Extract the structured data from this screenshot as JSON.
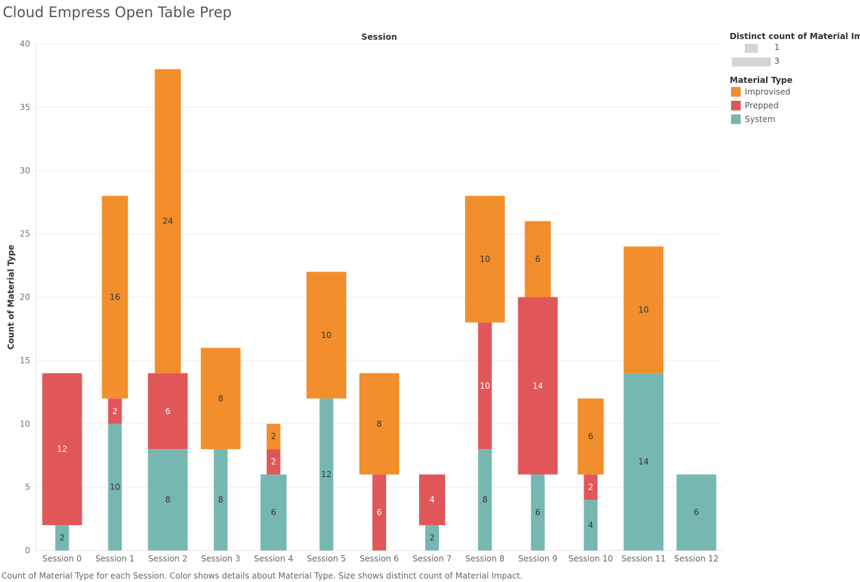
{
  "title": "Cloud Empress Open Table Prep",
  "caption": "Count of Material Type for each Session.  Color shows details about Material Type.  Size shows distinct count of Material Impact.",
  "legend": {
    "size_title": "Distinct count of Material Impact",
    "size_items": [
      {
        "label": "1",
        "value": 1
      },
      {
        "label": "3",
        "value": 3
      }
    ],
    "color_title": "Material Type",
    "color_items": [
      {
        "label": "Improvised",
        "color": "#f28e2b"
      },
      {
        "label": "Prepped",
        "color": "#e15759"
      },
      {
        "label": "System",
        "color": "#76b7b2"
      }
    ]
  },
  "chart_data": {
    "type": "bar",
    "stacked": true,
    "title": "Cloud Empress Open Table Prep",
    "column_header": "Session",
    "xlabel": "",
    "ylabel": "Count of Material Type",
    "ylim": [
      0,
      40
    ],
    "yticks": [
      0,
      5,
      10,
      15,
      20,
      25,
      30,
      35,
      40
    ],
    "grid": true,
    "legend_position": "right",
    "size_encoding": "Distinct count of Material Impact",
    "categories": [
      "Session 0",
      "Session 1",
      "Session 2",
      "Session 3",
      "Session 4",
      "Session 5",
      "Session 6",
      "Session 7",
      "Session 8",
      "Session 9",
      "Session 10",
      "Session 11",
      "Session 12"
    ],
    "series": [
      {
        "name": "System",
        "color": "#76b7b2",
        "values": [
          2,
          10,
          8,
          8,
          6,
          12,
          null,
          2,
          8,
          6,
          4,
          14,
          6
        ],
        "distinct_material_impact": [
          1,
          1,
          3,
          1,
          2,
          1,
          null,
          1,
          1,
          1,
          1,
          3,
          3
        ]
      },
      {
        "name": "Prepped",
        "color": "#e15759",
        "values": [
          12,
          2,
          6,
          null,
          2,
          null,
          6,
          4,
          10,
          14,
          2,
          null,
          null
        ],
        "distinct_material_impact": [
          3,
          1,
          3,
          null,
          1,
          null,
          1,
          2,
          1,
          3,
          1,
          null,
          null
        ]
      },
      {
        "name": "Improvised",
        "color": "#f28e2b",
        "values": [
          null,
          16,
          24,
          8,
          2,
          10,
          8,
          null,
          10,
          6,
          6,
          10,
          null
        ],
        "distinct_material_impact": [
          null,
          2,
          2,
          3,
          1,
          3,
          3,
          null,
          3,
          2,
          2,
          3,
          null
        ]
      }
    ]
  }
}
